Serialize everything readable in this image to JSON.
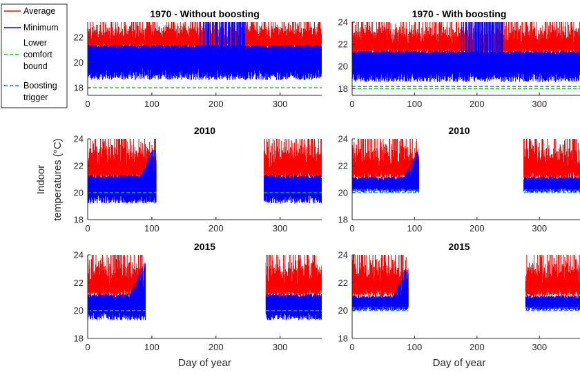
{
  "colors": {
    "average": "#ff0000",
    "minimum": "#0000ff",
    "lower_comfort": "#00cc00",
    "boosting_trigger": "#1f77b4",
    "axis": "#262626"
  },
  "legend": {
    "entries": [
      {
        "key": "average",
        "label": "Average",
        "style": "solid"
      },
      {
        "key": "minimum",
        "label": "Minimum",
        "style": "solid"
      },
      {
        "key": "lower_comfort",
        "label": "Lower comfort bound",
        "style": "dashed"
      },
      {
        "key": "boosting_trigger",
        "label": "Boosting trigger",
        "style": "dashed"
      }
    ]
  },
  "ylabel_lines": [
    "Indoor",
    "temperatures (°C)"
  ],
  "xlabel": "Day of year",
  "chart_data": [
    {
      "type": "line",
      "title": "1970 - Without boosting",
      "xlim": [
        0,
        365
      ],
      "ylim": [
        17.4,
        23.2
      ],
      "xticks": [
        "0",
        "100",
        "200",
        "300"
      ],
      "yticks": [
        "18",
        "20",
        "22"
      ],
      "heating_periods": [
        [
          0,
          365
        ]
      ],
      "series": [
        {
          "name": "Average",
          "band": [
            21.0,
            23.2
          ]
        },
        {
          "name": "Minimum",
          "band": [
            18.6,
            21.4
          ]
        }
      ],
      "lower_comfort_bound": 18,
      "boosting_trigger": null
    },
    {
      "type": "line",
      "title": "1970 - With boosting",
      "xlim": [
        0,
        365
      ],
      "ylim": [
        17.4,
        24
      ],
      "xticks": [
        "0",
        "100",
        "200",
        "300"
      ],
      "yticks": [
        "18",
        "20",
        "22",
        "24"
      ],
      "heating_periods": [
        [
          0,
          365
        ]
      ],
      "series": [
        {
          "name": "Average",
          "band": [
            21.1,
            24
          ]
        },
        {
          "name": "Minimum",
          "band": [
            18.6,
            21.4
          ]
        }
      ],
      "lower_comfort_bound": 18,
      "boosting_trigger": 18.2
    },
    {
      "type": "line",
      "title": "2010",
      "xlim": [
        0,
        365
      ],
      "ylim": [
        18,
        24
      ],
      "xticks": [
        "0",
        "100",
        "200",
        "300"
      ],
      "yticks": [
        "18",
        "20",
        "22",
        "24"
      ],
      "heating_periods": [
        [
          0,
          107
        ],
        [
          275,
          365
        ]
      ],
      "series": [
        {
          "name": "Average",
          "band": [
            21.0,
            24
          ]
        },
        {
          "name": "Minimum",
          "band": [
            19.2,
            21.3
          ]
        }
      ],
      "lower_comfort_bound": 20,
      "boosting_trigger": null
    },
    {
      "type": "line",
      "title": "2010",
      "xlim": [
        0,
        365
      ],
      "ylim": [
        18,
        24
      ],
      "xticks": [
        "0",
        "100",
        "200",
        "300"
      ],
      "yticks": [
        "18",
        "20",
        "22",
        "24"
      ],
      "heating_periods": [
        [
          0,
          107
        ],
        [
          275,
          365
        ]
      ],
      "series": [
        {
          "name": "Average",
          "band": [
            21.0,
            24
          ]
        },
        {
          "name": "Minimum",
          "band": [
            20.0,
            21.2
          ]
        }
      ],
      "lower_comfort_bound": 20,
      "boosting_trigger": 20.2
    },
    {
      "type": "line",
      "title": "2015",
      "xlim": [
        0,
        365
      ],
      "ylim": [
        18,
        24
      ],
      "xticks": [
        "0",
        "100",
        "200",
        "300"
      ],
      "yticks": [
        "18",
        "20",
        "22",
        "24"
      ],
      "heating_periods": [
        [
          0,
          90
        ],
        [
          278,
          365
        ]
      ],
      "series": [
        {
          "name": "Average",
          "band": [
            21.0,
            24
          ]
        },
        {
          "name": "Minimum",
          "band": [
            19.3,
            21.2
          ]
        }
      ],
      "lower_comfort_bound": 20,
      "boosting_trigger": null
    },
    {
      "type": "line",
      "title": "2015",
      "xlim": [
        0,
        365
      ],
      "ylim": [
        18,
        24
      ],
      "xticks": [
        "0",
        "100",
        "200",
        "300"
      ],
      "yticks": [
        "18",
        "20",
        "22",
        "24"
      ],
      "heating_periods": [
        [
          0,
          90
        ],
        [
          278,
          365
        ]
      ],
      "series": [
        {
          "name": "Average",
          "band": [
            21.0,
            24
          ]
        },
        {
          "name": "Minimum",
          "band": [
            20.0,
            21.1
          ]
        }
      ],
      "lower_comfort_bound": 20,
      "boosting_trigger": 20.2
    }
  ]
}
